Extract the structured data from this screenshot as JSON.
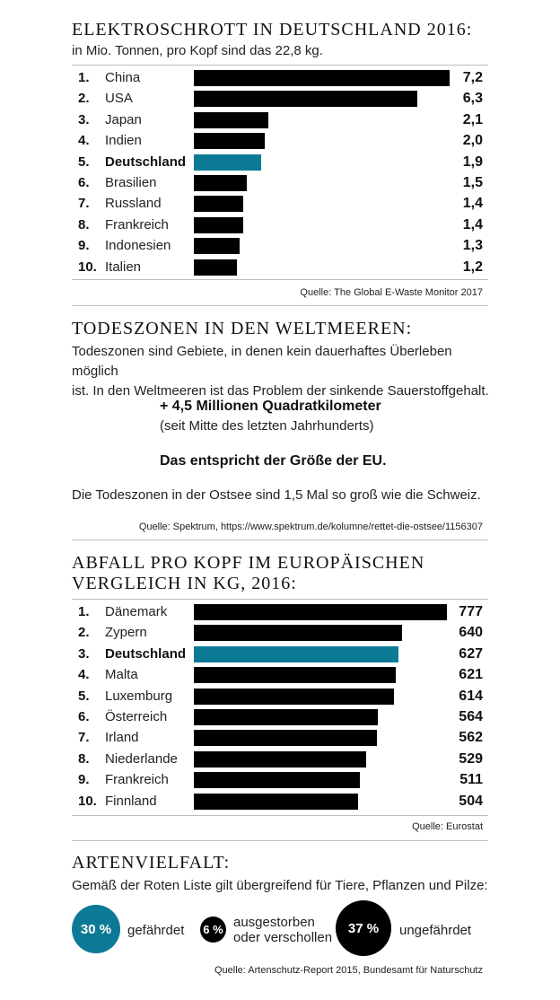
{
  "sections": {
    "ewaste": {
      "title": "Elektroschrott in Deutschland 2016:",
      "subtitle": "in Mio. Tonnen, pro Kopf sind das 22,8 kg.",
      "source": "Quelle: The Global E-Waste Monitor 2017"
    },
    "deadzones": {
      "title": "Todeszonen in den Weltmeeren:",
      "paragraph_lines": [
        "Todeszonen sind Gebiete, in denen kein dauerhaftes Überleben möglich",
        "ist. In den Weltmeeren ist das Problem der sinkende Sauerstoffgehalt."
      ],
      "highlight": "+ 4,5 Millionen Quadratkilometer",
      "highlight_note": "(seit Mitte des letzten Jahrhunderts)",
      "eu_note": "Das entspricht der Größe der EU.",
      "baltic_note": "Die Todeszonen in der Ostsee sind 1,5 Mal so groß wie die Schweiz.",
      "source": "Quelle: Spektrum, https://www.spektrum.de/kolumne/rettet-die-ostsee/1156307"
    },
    "waste": {
      "title_lines": [
        "Abfall pro Kopf im europäischen",
        "Vergleich in kg, 2016:"
      ],
      "source": "Quelle: Eurostat"
    },
    "biodiversity": {
      "title": "Artenvielfalt:",
      "subtitle": "Gemäß der Roten Liste gilt übergreifend für Tiere, Pflanzen und Pilze:",
      "items": [
        {
          "value": "30 %",
          "label": "gefährdet",
          "color": "#0d7a95"
        },
        {
          "value": "6 %",
          "label_lines": [
            "ausgestorben",
            "oder verschollen"
          ],
          "color": "#000000"
        },
        {
          "value": "37 %",
          "label": "ungefährdet",
          "color": "#000000"
        }
      ],
      "source": "Quelle: Artenschutz-Report 2015, Bundesamt für Naturschutz"
    }
  },
  "chart_data": [
    {
      "type": "bar",
      "orientation": "horizontal",
      "title": "Elektroschrott in Deutschland 2016:",
      "subtitle": "in Mio. Tonnen, pro Kopf sind das 22,8 kg.",
      "ranks": [
        "1.",
        "2.",
        "3.",
        "4.",
        "5.",
        "6.",
        "7.",
        "8.",
        "9.",
        "10."
      ],
      "categories": [
        "China",
        "USA",
        "Japan",
        "Indien",
        "Deutschland",
        "Brasilien",
        "Russland",
        "Frankreich",
        "Indonesien",
        "Italien"
      ],
      "values": [
        7.2,
        6.3,
        2.1,
        2.0,
        1.9,
        1.5,
        1.4,
        1.4,
        1.3,
        1.2
      ],
      "value_labels": [
        "7,2",
        "6,3",
        "2,1",
        "2,0",
        "1,9",
        "1,5",
        "1,4",
        "1,4",
        "1,3",
        "1,2"
      ],
      "highlight": "Deutschland",
      "bar_color": "#000000",
      "highlight_color": "#0d7a95",
      "xlim": [
        0,
        7.2
      ],
      "grid": false
    },
    {
      "type": "bar",
      "orientation": "horizontal",
      "title": "Abfall pro Kopf im europäischen Vergleich in kg, 2016:",
      "ranks": [
        "1.",
        "2.",
        "3.",
        "4.",
        "5.",
        "6.",
        "7.",
        "8.",
        "9.",
        "10."
      ],
      "categories": [
        "Dänemark",
        "Zypern",
        "Deutschland",
        "Malta",
        "Luxemburg",
        "Österreich",
        "Irland",
        "Niederlande",
        "Frankreich",
        "Finnland"
      ],
      "values": [
        777,
        640,
        627,
        621,
        614,
        564,
        562,
        529,
        511,
        504
      ],
      "value_labels": [
        "777",
        "640",
        "627",
        "621",
        "614",
        "564",
        "562",
        "529",
        "511",
        "504"
      ],
      "highlight": "Deutschland",
      "bar_color": "#000000",
      "highlight_color": "#0d7a95",
      "xlim": [
        0,
        777
      ],
      "grid": false
    }
  ]
}
